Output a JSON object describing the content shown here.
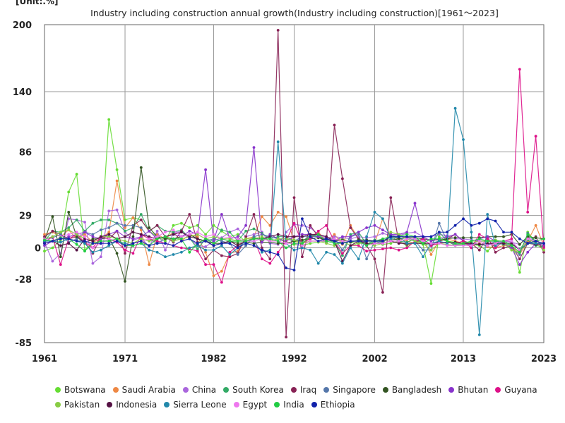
{
  "chart_data": {
    "type": "line",
    "title": "Industry including construction annual growth(Industry including construction)[1961～2023]",
    "unit_label": "[Unit:.%]",
    "xlabel": "",
    "ylabel": "",
    "x": [
      1961,
      1962,
      1963,
      1964,
      1965,
      1966,
      1967,
      1968,
      1969,
      1970,
      1971,
      1972,
      1973,
      1974,
      1975,
      1976,
      1977,
      1978,
      1979,
      1980,
      1981,
      1982,
      1983,
      1984,
      1985,
      1986,
      1987,
      1988,
      1989,
      1990,
      1991,
      1992,
      1993,
      1994,
      1995,
      1996,
      1997,
      1998,
      1999,
      2000,
      2001,
      2002,
      2003,
      2004,
      2005,
      2006,
      2007,
      2008,
      2009,
      2010,
      2011,
      2012,
      2013,
      2014,
      2015,
      2016,
      2017,
      2018,
      2019,
      2020,
      2021,
      2022,
      2023
    ],
    "xlim": [
      1961,
      2023
    ],
    "ylim": [
      -85,
      200
    ],
    "y_ticks": [
      200,
      140,
      86,
      29,
      0,
      -28,
      -85
    ],
    "x_ticks": [
      1961,
      1971,
      1982,
      1992,
      2002,
      2013,
      2023
    ],
    "series": [
      {
        "name": "Botswana",
        "color": "#66dd33",
        "values": [
          -3,
          0,
          7,
          50,
          66,
          -2,
          5,
          4,
          115,
          70,
          25,
          27,
          25,
          15,
          10,
          6,
          20,
          22,
          18,
          20,
          12,
          20,
          15,
          10,
          12,
          5,
          10,
          6,
          12,
          8,
          5,
          3,
          2,
          4,
          5,
          6,
          7,
          8,
          5,
          4,
          6,
          6,
          3,
          4,
          6,
          2,
          5,
          3,
          -32,
          10,
          6,
          5,
          4,
          3,
          2,
          -3,
          4,
          5,
          6,
          -22,
          14,
          5,
          1
        ]
      },
      {
        "name": "Saudi Arabia",
        "color": "#ee8844",
        "values": [
          12,
          14,
          10,
          16,
          8,
          12,
          5,
          8,
          14,
          60,
          18,
          27,
          16,
          -15,
          12,
          8,
          14,
          6,
          12,
          10,
          -4,
          -25,
          -21,
          -5,
          -3,
          8,
          10,
          28,
          20,
          32,
          28,
          6,
          4,
          10,
          14,
          6,
          12,
          3,
          20,
          8,
          4,
          4,
          26,
          10,
          8,
          6,
          4,
          8,
          -6,
          6,
          8,
          6,
          4,
          2,
          4,
          1,
          0,
          2,
          2,
          -6,
          6,
          20,
          2
        ]
      },
      {
        "name": "China",
        "color": "#aa66dd",
        "values": [
          5,
          -12,
          -5,
          26,
          25,
          23,
          -14,
          -8,
          33,
          34,
          14,
          7,
          9,
          1,
          15,
          -2,
          13,
          15,
          8,
          2,
          1,
          6,
          9,
          14,
          17,
          10,
          12,
          14,
          4,
          3,
          14,
          21,
          20,
          18,
          12,
          9,
          10,
          9,
          8,
          10,
          9,
          10,
          13,
          11,
          11,
          13,
          14,
          10,
          10,
          12,
          11,
          8,
          8,
          7,
          6,
          6,
          6,
          6,
          5,
          3,
          10,
          4,
          4
        ]
      },
      {
        "name": "South Korea",
        "color": "#33aa66",
        "values": [
          6,
          15,
          14,
          18,
          25,
          15,
          22,
          25,
          25,
          22,
          15,
          18,
          30,
          15,
          20,
          15,
          14,
          16,
          9,
          -1,
          8,
          6,
          16,
          14,
          6,
          15,
          17,
          13,
          8,
          10,
          10,
          6,
          6,
          11,
          10,
          7,
          5,
          -7,
          12,
          14,
          3,
          7,
          5,
          10,
          6,
          5,
          8,
          4,
          2,
          14,
          6,
          2,
          3,
          3,
          3,
          3,
          4,
          3,
          3,
          -1,
          7,
          2,
          1
        ]
      },
      {
        "name": "Iraq",
        "color": "#882255",
        "values": [
          10,
          15,
          12,
          8,
          10,
          5,
          -5,
          10,
          8,
          15,
          -5,
          20,
          25,
          15,
          20,
          10,
          5,
          15,
          30,
          5,
          -10,
          -2,
          -7,
          -8,
          -5,
          10,
          30,
          0,
          -10,
          195,
          -80,
          45,
          -8,
          20,
          10,
          5,
          110,
          62,
          18,
          8,
          2,
          -10,
          -40,
          45,
          5,
          3,
          5,
          8,
          2,
          6,
          8,
          12,
          6,
          4,
          -2,
          10,
          -4,
          0,
          2,
          -10,
          4,
          10,
          -4
        ]
      },
      {
        "name": "Singapore",
        "color": "#5577aa",
        "values": [
          8,
          9,
          12,
          5,
          8,
          14,
          12,
          16,
          18,
          22,
          20,
          20,
          18,
          8,
          4,
          8,
          8,
          10,
          12,
          8,
          6,
          8,
          6,
          4,
          -6,
          2,
          10,
          12,
          10,
          8,
          8,
          6,
          10,
          10,
          10,
          8,
          8,
          -2,
          10,
          12,
          -10,
          6,
          4,
          12,
          8,
          10,
          6,
          -2,
          -2,
          22,
          6,
          3,
          4,
          4,
          3,
          2,
          6,
          4,
          -1,
          -6,
          13,
          4,
          2
        ]
      },
      {
        "name": "Bangladesh",
        "color": "#335522",
        "values": [
          6,
          28,
          -8,
          32,
          10,
          4,
          8,
          8,
          9,
          -5,
          -30,
          10,
          72,
          18,
          10,
          8,
          8,
          10,
          12,
          8,
          6,
          4,
          4,
          6,
          4,
          5,
          4,
          5,
          5,
          4,
          4,
          6,
          7,
          8,
          9,
          7,
          6,
          7,
          5,
          7,
          7,
          6,
          7,
          7,
          8,
          9,
          9,
          8,
          7,
          7,
          8,
          9,
          9,
          9,
          9,
          10,
          10,
          10,
          12,
          3,
          10,
          9,
          8
        ]
      },
      {
        "name": "Bhutan",
        "color": "#8833cc",
        "values": [
          2,
          6,
          8,
          10,
          12,
          14,
          10,
          8,
          12,
          15,
          10,
          8,
          10,
          15,
          8,
          10,
          12,
          10,
          15,
          12,
          70,
          6,
          30,
          8,
          10,
          20,
          90,
          5,
          12,
          8,
          6,
          10,
          12,
          12,
          10,
          8,
          6,
          10,
          10,
          14,
          18,
          20,
          16,
          12,
          12,
          14,
          40,
          10,
          6,
          8,
          10,
          12,
          6,
          2,
          8,
          10,
          6,
          4,
          0,
          -15,
          -4,
          4,
          2
        ]
      },
      {
        "name": "Guyana",
        "color": "#dd1188",
        "values": [
          5,
          10,
          -15,
          8,
          12,
          5,
          0,
          10,
          8,
          5,
          -2,
          -5,
          12,
          8,
          6,
          4,
          2,
          0,
          -1,
          -3,
          -15,
          -15,
          -31,
          -4,
          2,
          6,
          8,
          -10,
          -14,
          -4,
          6,
          22,
          4,
          8,
          15,
          20,
          6,
          -5,
          2,
          2,
          -3,
          -2,
          -1,
          0,
          -2,
          0,
          6,
          8,
          2,
          4,
          5,
          4,
          6,
          0,
          12,
          8,
          0,
          6,
          8,
          160,
          32,
          100,
          0
        ]
      },
      {
        "name": "Pakistan",
        "color": "#88cc44",
        "values": [
          8,
          10,
          14,
          16,
          12,
          8,
          6,
          10,
          10,
          8,
          6,
          4,
          8,
          6,
          8,
          10,
          6,
          8,
          10,
          12,
          8,
          10,
          8,
          8,
          6,
          8,
          8,
          10,
          6,
          8,
          8,
          7,
          4,
          6,
          6,
          4,
          2,
          6,
          2,
          4,
          4,
          2,
          4,
          14,
          12,
          8,
          6,
          4,
          -2,
          4,
          3,
          2,
          4,
          5,
          6,
          6,
          7,
          5,
          -2,
          -4,
          8,
          4,
          -2
        ]
      },
      {
        "name": "Indonesia",
        "color": "#551144",
        "values": [
          4,
          6,
          2,
          4,
          -2,
          8,
          6,
          10,
          12,
          8,
          10,
          14,
          12,
          10,
          8,
          10,
          12,
          14,
          10,
          8,
          6,
          2,
          4,
          6,
          2,
          6,
          8,
          8,
          10,
          12,
          10,
          10,
          10,
          12,
          12,
          10,
          6,
          -12,
          2,
          6,
          4,
          4,
          4,
          6,
          4,
          4,
          4,
          4,
          4,
          5,
          5,
          5,
          4,
          4,
          3,
          4,
          4,
          4,
          4,
          -2,
          4,
          3,
          4
        ]
      },
      {
        "name": "Sierra Leone",
        "color": "#2288aa",
        "values": [
          6,
          6,
          5,
          8,
          6,
          4,
          -4,
          -2,
          2,
          6,
          4,
          2,
          4,
          -2,
          -4,
          -8,
          -6,
          -4,
          0,
          2,
          -2,
          -2,
          2,
          -6,
          0,
          6,
          6,
          -4,
          -2,
          95,
          4,
          -2,
          0,
          -2,
          -14,
          -4,
          -6,
          -14,
          0,
          -10,
          10,
          32,
          26,
          8,
          10,
          4,
          4,
          -8,
          4,
          6,
          4,
          125,
          97,
          14,
          -78,
          30,
          2,
          6,
          6,
          -2,
          4,
          4,
          4
        ]
      },
      {
        "name": "Egypt",
        "color": "#ee77ee",
        "values": [
          8,
          6,
          10,
          12,
          14,
          10,
          0,
          4,
          8,
          6,
          2,
          4,
          6,
          8,
          10,
          14,
          16,
          10,
          12,
          14,
          10,
          12,
          8,
          10,
          8,
          6,
          6,
          8,
          6,
          6,
          4,
          4,
          2,
          6,
          6,
          6,
          8,
          6,
          6,
          6,
          2,
          4,
          4,
          6,
          6,
          8,
          8,
          6,
          4,
          4,
          2,
          2,
          2,
          2,
          6,
          2,
          4,
          6,
          6,
          -2,
          8,
          6,
          4
        ]
      },
      {
        "name": "India",
        "color": "#22cc44",
        "values": [
          7,
          6,
          9,
          8,
          3,
          -3,
          4,
          6,
          6,
          8,
          2,
          2,
          4,
          2,
          8,
          10,
          8,
          8,
          -4,
          4,
          8,
          4,
          8,
          6,
          6,
          6,
          8,
          8,
          8,
          6,
          0,
          4,
          4,
          10,
          12,
          6,
          4,
          4,
          6,
          6,
          2,
          6,
          8,
          10,
          10,
          12,
          10,
          4,
          8,
          8,
          6,
          4,
          4,
          6,
          8,
          6,
          6,
          6,
          2,
          -4,
          12,
          6,
          8
        ]
      },
      {
        "name": "Ethiopia",
        "color": "#1122aa",
        "values": [
          4,
          6,
          8,
          8,
          6,
          6,
          4,
          4,
          4,
          6,
          2,
          4,
          6,
          2,
          4,
          4,
          2,
          6,
          8,
          4,
          6,
          2,
          4,
          4,
          0,
          4,
          2,
          -2,
          -4,
          -6,
          -18,
          -20,
          26,
          10,
          6,
          8,
          6,
          4,
          6,
          6,
          6,
          6,
          6,
          10,
          10,
          10,
          10,
          10,
          10,
          14,
          14,
          20,
          26,
          20,
          22,
          26,
          24,
          14,
          14,
          8,
          4,
          6,
          4
        ]
      }
    ]
  }
}
